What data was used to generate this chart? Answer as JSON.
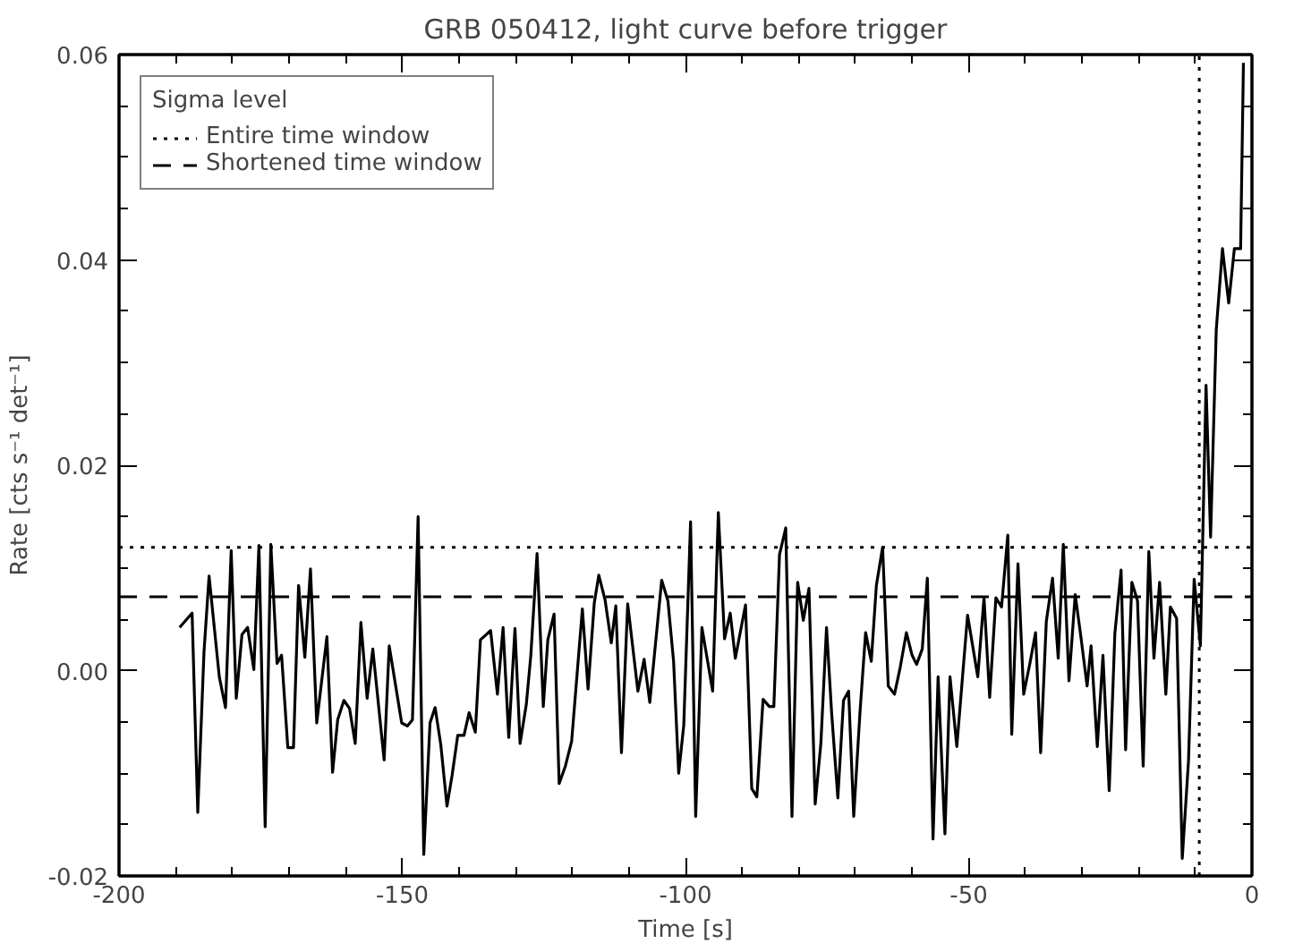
{
  "chart_data": {
    "type": "line",
    "title": "GRB 050412, light curve before trigger",
    "xlabel": "Time [s]",
    "ylabel": "Rate [cts s⁻¹ det⁻¹]",
    "legend_title": "Sigma level",
    "xlim": [
      -200,
      0
    ],
    "ylim": [
      -0.02,
      0.06
    ],
    "xticks": [
      -200,
      -150,
      -100,
      -50,
      0,
      {
        "value": -190,
        "label": null
      },
      {
        "value": -180,
        "label": null
      },
      {
        "value": -170,
        "label": null
      },
      {
        "value": -160,
        "label": null
      },
      {
        "value": -140,
        "label": null
      },
      {
        "value": -130,
        "label": null
      },
      {
        "value": -120,
        "label": null
      },
      {
        "value": -110,
        "label": null
      },
      {
        "value": -90,
        "label": null
      },
      {
        "value": -80,
        "label": null
      },
      {
        "value": -70,
        "label": null
      },
      {
        "value": -60,
        "label": null
      },
      {
        "value": -40,
        "label": null
      },
      {
        "value": -30,
        "label": null
      },
      {
        "value": -20,
        "label": null
      },
      {
        "value": -10,
        "label": null
      }
    ],
    "yticks": [
      {
        "value": -0.02,
        "label": "-0.02"
      },
      {
        "value": 0.0,
        "label": "0.00"
      },
      {
        "value": 0.02,
        "label": "0.02"
      },
      {
        "value": 0.04,
        "label": "0.04"
      },
      {
        "value": 0.06,
        "label": "0.06"
      },
      {
        "value": -0.015,
        "label": null
      },
      {
        "value": -0.01,
        "label": null
      },
      {
        "value": -0.005,
        "label": null
      },
      {
        "value": 0.005,
        "label": null
      },
      {
        "value": 0.01,
        "label": null
      },
      {
        "value": 0.015,
        "label": null
      },
      {
        "value": 0.025,
        "label": null
      },
      {
        "value": 0.03,
        "label": null
      },
      {
        "value": 0.035,
        "label": null
      },
      {
        "value": 0.045,
        "label": null
      },
      {
        "value": 0.05,
        "label": null
      },
      {
        "value": 0.055,
        "label": null
      }
    ],
    "grid": false,
    "legend": "top left",
    "marker": "none",
    "line_style": "solid",
    "ref_lines": [
      {
        "axis": "y",
        "value": 0.012,
        "label": "Entire time window",
        "line_style": "dotted",
        "color": "#000000"
      },
      {
        "axis": "y",
        "value": 0.0072,
        "label": "Shortened time window",
        "line_style": "dashed",
        "color": "#000000"
      },
      {
        "axis": "x",
        "value": -9.3,
        "line_style": "dotted",
        "color": "#000000"
      }
    ],
    "series": [
      {
        "color": "#000000",
        "x": [
          -189.3,
          -187.1,
          -186.1,
          -185.0,
          -184.1,
          -182.3,
          -181.2,
          -180.2,
          -179.3,
          -178.3,
          -177.3,
          -176.2,
          -175.3,
          -174.2,
          -173.2,
          -172.1,
          -171.3,
          -170.2,
          -169.2,
          -168.3,
          -167.2,
          -166.2,
          -165.1,
          -163.3,
          -162.3,
          -161.4,
          -160.3,
          -159.3,
          -158.3,
          -157.3,
          -156.2,
          -155.2,
          -153.2,
          -152.3,
          -150.1,
          -149.1,
          -148.2,
          -147.2,
          -146.2,
          -145.1,
          -144.2,
          -143.2,
          -142.1,
          -141.2,
          -140.2,
          -139.1,
          -138.2,
          -137.1,
          -136.2,
          -134.4,
          -133.2,
          -132.2,
          -131.2,
          -130.1,
          -129.2,
          -128.1,
          -127.3,
          -126.2,
          -125.1,
          -124.3,
          -123.2,
          -122.3,
          -121.2,
          -120.1,
          -118.2,
          -117.2,
          -116.1,
          -115.3,
          -114.2,
          -113.1,
          -112.3,
          -111.3,
          -110.2,
          -108.4,
          -107.3,
          -106.3,
          -104.2,
          -103.1,
          -102.1,
          -101.2,
          -100.3,
          -99.1,
          -98.2,
          -97.1,
          -95.2,
          -94.2,
          -93.1,
          -92.1,
          -91.2,
          -89.4,
          -88.3,
          -87.4,
          -86.3,
          -85.2,
          -84.4,
          -83.4,
          -82.3,
          -81.2,
          -80.2,
          -79.2,
          -78.2,
          -77.1,
          -76.1,
          -75.1,
          -74.2,
          -73.1,
          -72.1,
          -71.2,
          -70.3,
          -69.2,
          -68.2,
          -67.2,
          -66.3,
          -65.2,
          -64.2,
          -63.1,
          -62.1,
          -61.0,
          -60.0,
          -59.2,
          -58.2,
          -57.3,
          -56.3,
          -55.4,
          -54.2,
          -53.3,
          -52.1,
          -50.2,
          -48.4,
          -47.3,
          -46.3,
          -45.2,
          -44.2,
          -43.1,
          -42.4,
          -41.3,
          -40.3,
          -39.2,
          -38.2,
          -37.3,
          -36.3,
          -35.2,
          -34.2,
          -33.3,
          -32.3,
          -31.2,
          -30.2,
          -29.1,
          -28.4,
          -27.3,
          -26.3,
          -25.2,
          -24.2,
          -23.1,
          -22.3,
          -21.2,
          -20.2,
          -19.2,
          -18.2,
          -17.3,
          -16.3,
          -15.2,
          -14.4,
          -13.3,
          -12.3,
          -11.2,
          -10.2,
          -9.1,
          -8.1,
          -7.3,
          -6.3,
          -5.2,
          -4.1,
          -3.1,
          -2.0,
          -1.5
        ],
        "values": [
          0.0042,
          0.0056,
          -0.0138,
          0.0018,
          0.0092,
          -0.0006,
          -0.0036,
          0.0117,
          -0.0027,
          0.0035,
          0.0042,
          0.0001,
          0.0122,
          -0.0152,
          0.0123,
          0.0007,
          0.0015,
          -0.0075,
          -0.0075,
          0.0083,
          0.0013,
          0.0099,
          -0.0051,
          0.0033,
          -0.0099,
          -0.0048,
          -0.0029,
          -0.0037,
          -0.0071,
          0.0047,
          -0.0027,
          0.0021,
          -0.0087,
          0.0024,
          -0.0051,
          -0.0054,
          -0.0048,
          0.015,
          -0.0179,
          -0.0051,
          -0.0036,
          -0.0072,
          -0.0132,
          -0.0102,
          -0.0063,
          -0.0063,
          -0.0041,
          -0.006,
          0.003,
          0.0039,
          -0.0023,
          0.0042,
          -0.0065,
          0.0041,
          -0.0071,
          -0.0033,
          0.0015,
          0.0114,
          -0.0035,
          0.003,
          0.0055,
          -0.011,
          -0.0093,
          -0.0069,
          0.006,
          -0.0018,
          0.0066,
          0.0093,
          0.0069,
          0.0027,
          0.0063,
          -0.008,
          0.0065,
          -0.002,
          0.0011,
          -0.0031,
          0.0088,
          0.0068,
          0.0009,
          -0.01,
          -0.0053,
          0.0145,
          -0.0142,
          0.0042,
          -0.002,
          0.0154,
          0.0031,
          0.0056,
          0.0012,
          0.0064,
          -0.0115,
          -0.0123,
          -0.0028,
          -0.0035,
          -0.0035,
          0.0113,
          0.0139,
          -0.0142,
          0.0086,
          0.0049,
          0.008,
          -0.013,
          -0.0071,
          0.0042,
          -0.0041,
          -0.0124,
          -0.0029,
          -0.002,
          -0.0142,
          -0.0041,
          0.0037,
          0.0009,
          0.0083,
          0.012,
          -0.0015,
          -0.0023,
          0.0003,
          0.0037,
          0.0015,
          0.0006,
          0.0021,
          0.009,
          -0.0164,
          -0.0006,
          -0.0159,
          -0.0006,
          -0.0074,
          0.0054,
          -0.0006,
          0.0071,
          -0.0026,
          0.0071,
          0.0062,
          0.0132,
          -0.0062,
          0.0104,
          -0.0023,
          0.0007,
          0.0037,
          -0.008,
          0.0048,
          0.009,
          0.0012,
          0.0123,
          -0.001,
          0.0074,
          0.0033,
          -0.0015,
          0.0024,
          -0.0074,
          0.0015,
          -0.0117,
          0.0036,
          0.0098,
          -0.0077,
          0.0086,
          0.0068,
          -0.0093,
          0.0116,
          0.0012,
          0.0086,
          -0.0023,
          0.0062,
          0.0051,
          -0.0183,
          -0.0088,
          0.0089,
          0.0024,
          0.0278,
          0.013,
          0.0332,
          0.0411,
          0.0358,
          0.0411,
          0.0411,
          0.0592
        ]
      }
    ]
  }
}
